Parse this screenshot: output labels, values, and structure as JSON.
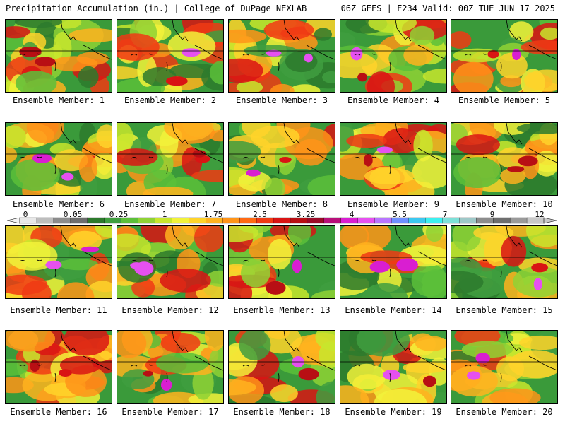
{
  "header": {
    "title": "Precipitation Accumulation (in.) | College of DuPage NEXLAB",
    "run_info": "06Z GEFS | F234 Valid: 00Z TUE JUN 17 2025"
  },
  "members": [
    {
      "label": "Ensemble Member: 1"
    },
    {
      "label": "Ensemble Member: 2"
    },
    {
      "label": "Ensemble Member: 3"
    },
    {
      "label": "Ensemble Member: 4"
    },
    {
      "label": "Ensemble Member: 5"
    },
    {
      "label": "Ensemble Member: 6"
    },
    {
      "label": "Ensemble Member: 7"
    },
    {
      "label": "Ensemble Member: 8"
    },
    {
      "label": "Ensemble Member: 9"
    },
    {
      "label": "Ensemble Member: 10"
    },
    {
      "label": "Ensemble Member: 11"
    },
    {
      "label": "Ensemble Member: 12"
    },
    {
      "label": "Ensemble Member: 13"
    },
    {
      "label": "Ensemble Member: 14"
    },
    {
      "label": "Ensemble Member: 15"
    },
    {
      "label": "Ensemble Member: 16"
    },
    {
      "label": "Ensemble Member: 17"
    },
    {
      "label": "Ensemble Member: 18"
    },
    {
      "label": "Ensemble Member: 19"
    },
    {
      "label": "Ensemble Member: 20"
    }
  ],
  "colorbar": {
    "ticks": [
      "0",
      "0.05",
      "0.25",
      "1",
      "1.75",
      "2.5",
      "3.25",
      "4",
      "5.5",
      "7",
      "9",
      "12"
    ],
    "colors": [
      "#e8e8e8",
      "#bdbdbd",
      "#8c8c8c",
      "#6e6e6e",
      "#2d7a2d",
      "#3f9e3f",
      "#5cbf3a",
      "#8fd235",
      "#c8e62d",
      "#f2f23a",
      "#ffd42a",
      "#ffb31f",
      "#ff9419",
      "#ff6a14",
      "#f03a14",
      "#d91414",
      "#b80f14",
      "#9c0a28",
      "#b8107a",
      "#d91ed1",
      "#e650f0",
      "#b875ff",
      "#6f8fff",
      "#3cc8f0",
      "#3cf0f0",
      "#7de0d8",
      "#9ec8c8",
      "#8c8c8c",
      "#6e6e6e",
      "#9a9a9a",
      "#c8c8c8"
    ]
  }
}
